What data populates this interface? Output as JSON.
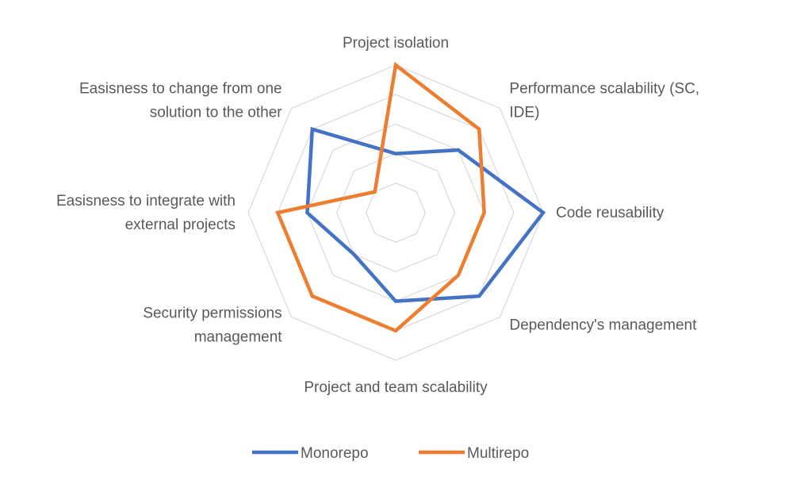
{
  "chart_data": {
    "type": "radar",
    "title": "",
    "categories": [
      "Project isolation",
      "Performance scalability (SC, IDE)",
      "Code reusability",
      "Dependency's management",
      "Project and team scalability",
      "Security permissions management",
      "Easisness to integrate with external projects",
      "Easisness to change from one solution to the other"
    ],
    "category_lines": [
      [
        "Project isolation"
      ],
      [
        "Performance scalability (SC,",
        "IDE)"
      ],
      [
        "Code reusability"
      ],
      [
        "Dependency's management"
      ],
      [
        "Project and team scalability"
      ],
      [
        "Security permissions",
        "management"
      ],
      [
        "Easisness to integrate with",
        "external projects"
      ],
      [
        "Easisness to change from one",
        "solution to the other"
      ]
    ],
    "rlim": [
      0,
      5
    ],
    "rings": [
      1,
      2,
      3,
      4,
      5
    ],
    "series": [
      {
        "name": "Monorepo",
        "color": "#4472C4",
        "values": [
          2,
          3,
          5,
          4,
          3,
          2,
          3,
          4
        ]
      },
      {
        "name": "Multirepo",
        "color": "#ED7D31",
        "values": [
          5,
          4,
          3,
          3,
          4,
          4,
          4,
          1
        ]
      }
    ],
    "grid": true,
    "legend_position": "bottom"
  }
}
